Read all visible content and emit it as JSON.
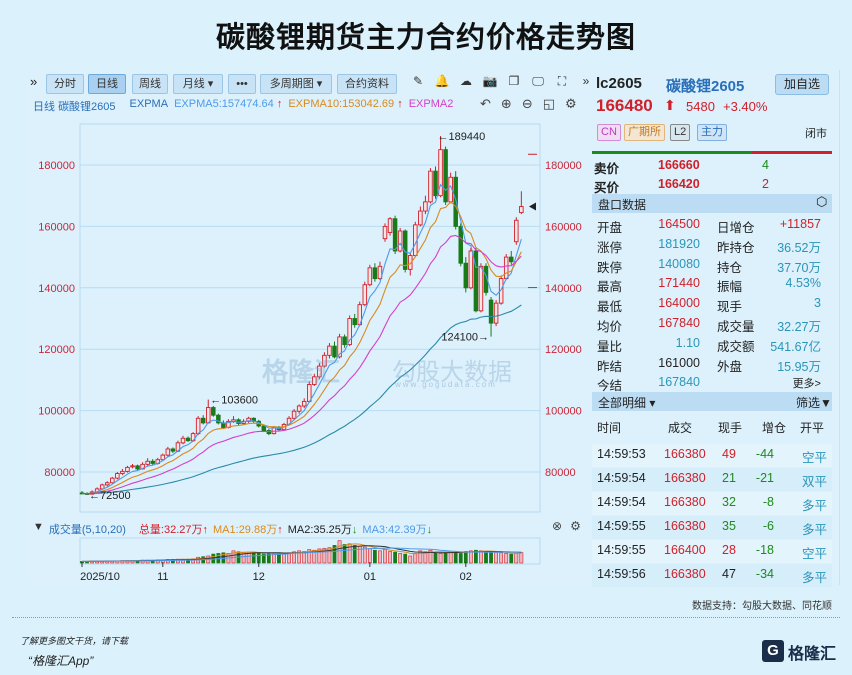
{
  "title": "碳酸锂期货主力合约价格走势图",
  "toolbar": {
    "expand": "»",
    "tabs": [
      "分时",
      "日线",
      "周线",
      "月线 ▾",
      "•••",
      "多周期图 ▾",
      "合约资料"
    ],
    "active": "日线",
    "icons": [
      "pencil-icon",
      "bell-icon",
      "cloud-icon",
      "camera-icon",
      "copy-icon",
      "monitor-icon",
      "fullscreen-icon",
      "expand-right-icon"
    ]
  },
  "legend": {
    "period": "日线",
    "name": "碳酸锂2605",
    "indicator": "EXPMA",
    "ema5": "EXPMA5:157474.64",
    "ema10": "EXPMA10:153042.69",
    "ema20": "EXPMA2",
    "up_arrow": "↑",
    "colors": {
      "ema5": "#4f9ae8",
      "ema10": "#d98a1f",
      "ema20": "#d63fc8",
      "ema60": "#2a8aa8"
    }
  },
  "volume": {
    "label": "成交量(5,10,20)",
    "total": "总量:32.27万",
    "ma1": "MA1:29.88万",
    "ma2": "MA2:35.25万",
    "ma3": "MA3:42.39万",
    "arrow_up": "↑",
    "arrow_down": "↓"
  },
  "watermark": {
    "brand": "格隆汇",
    "site": "勾股大数据",
    "url": "www.gogudata.com"
  },
  "quote": {
    "code": "lc2605",
    "name": "碳酸锂2605",
    "add_button": "加自选",
    "price": "166480",
    "change": "5480",
    "change_pct": "+3.40%",
    "tags": [
      "CN",
      "广期所",
      "L2",
      "主力"
    ],
    "status": "闭市",
    "ask_label": "卖价",
    "ask": "166660",
    "ask_vol": "4",
    "bid_label": "买价",
    "bid": "166420",
    "bid_vol": "2",
    "section": "盘口数据",
    "stats": [
      [
        "开盘",
        "164500",
        "日增仓",
        "+11857"
      ],
      [
        "涨停",
        "181920",
        "昨持仓",
        "36.52万"
      ],
      [
        "跌停",
        "140080",
        "持仓",
        "37.70万"
      ],
      [
        "最高",
        "171440",
        "振幅",
        "4.53%"
      ],
      [
        "最低",
        "164000",
        "现手",
        "3"
      ],
      [
        "均价",
        "167840",
        "成交量",
        "32.27万"
      ],
      [
        "量比",
        "1.10",
        "成交额",
        "541.67亿"
      ],
      [
        "昨结",
        "161000",
        "外盘",
        "15.95万"
      ],
      [
        "今结",
        "167840",
        "",
        "更多>"
      ]
    ],
    "detail_title": "全部明细 ▾",
    "filter": "筛选",
    "detail_headers": [
      "时间",
      "成交",
      "现手",
      "增仓",
      "开平"
    ],
    "details": [
      [
        "14:59:53",
        "166380",
        "49",
        "-44",
        "空平"
      ],
      [
        "14:59:54",
        "166380",
        "21",
        "-21",
        "双平"
      ],
      [
        "14:59:54",
        "166380",
        "32",
        "-8",
        "多平"
      ],
      [
        "14:59:55",
        "166380",
        "35",
        "-6",
        "多平"
      ],
      [
        "14:59:55",
        "166400",
        "28",
        "-18",
        "空平"
      ],
      [
        "14:59:56",
        "166380",
        "47",
        "-34",
        "多平"
      ]
    ]
  },
  "footer": {
    "source": "数据支持：勾股大数据、同花顺",
    "promo1": "了解更多图文干货，请下载",
    "promo2": "“格隆汇App”",
    "logo": "格隆汇"
  },
  "chart_data": {
    "type": "candlestick",
    "yticks": [
      80000,
      100000,
      120000,
      140000,
      160000,
      180000
    ],
    "ylim": [
      70000,
      193000
    ],
    "xticks": [
      {
        "label": "2025/10",
        "index": 0
      },
      {
        "label": "11",
        "index": 16
      },
      {
        "label": "12",
        "index": 35
      },
      {
        "label": "01",
        "index": 57
      },
      {
        "label": "02",
        "index": 76
      }
    ],
    "annotations": [
      {
        "text": "←189440",
        "index": 70,
        "price": 189440
      },
      {
        "text": "←103600",
        "index": 25,
        "price": 103600
      },
      {
        "text": "←72500",
        "index": 1,
        "price": 72500
      },
      {
        "text": "124100→",
        "index": 81,
        "price": 124100
      }
    ],
    "up_color": "#d0202a",
    "down_color": "#187a18",
    "ohlc": [
      [
        73200,
        73800,
        72800,
        73000
      ],
      [
        73000,
        73400,
        72500,
        72800
      ],
      [
        72800,
        74000,
        72600,
        73500
      ],
      [
        73500,
        75000,
        73200,
        74500
      ],
      [
        74500,
        76200,
        74200,
        75800
      ],
      [
        75800,
        77000,
        75300,
        76500
      ],
      [
        76500,
        78400,
        76200,
        78000
      ],
      [
        78000,
        80000,
        77600,
        79500
      ],
      [
        79500,
        81000,
        79000,
        80200
      ],
      [
        80200,
        82000,
        79800,
        81500
      ],
      [
        81800,
        82600,
        81200,
        82000
      ],
      [
        82000,
        82400,
        80600,
        81000
      ],
      [
        81000,
        83200,
        80800,
        82500
      ],
      [
        82500,
        84500,
        82000,
        83500
      ],
      [
        83500,
        84200,
        82200,
        82800
      ],
      [
        82800,
        84600,
        82400,
        84000
      ],
      [
        84000,
        86000,
        83600,
        85500
      ],
      [
        85500,
        88200,
        85000,
        87500
      ],
      [
        87500,
        88000,
        86200,
        86800
      ],
      [
        86800,
        90200,
        86500,
        89500
      ],
      [
        89500,
        91800,
        89000,
        91000
      ],
      [
        91000,
        91600,
        89800,
        90200
      ],
      [
        90200,
        93000,
        89800,
        92500
      ],
      [
        92500,
        98200,
        92000,
        97500
      ],
      [
        97500,
        98500,
        95500,
        96000
      ],
      [
        96000,
        103600,
        95800,
        101000
      ],
      [
        101000,
        101500,
        98000,
        98500
      ],
      [
        98500,
        99000,
        95500,
        96000
      ],
      [
        96000,
        96800,
        94000,
        94500
      ],
      [
        94500,
        97200,
        94200,
        96500
      ],
      [
        96500,
        98200,
        96000,
        97000
      ],
      [
        97000,
        97500,
        95200,
        95800
      ],
      [
        95800,
        97200,
        95400,
        96500
      ],
      [
        96500,
        98000,
        96000,
        97500
      ],
      [
        97500,
        97800,
        96000,
        96500
      ],
      [
        96500,
        97000,
        94500,
        95000
      ],
      [
        95000,
        95500,
        93000,
        93500
      ],
      [
        93500,
        94000,
        92000,
        92500
      ],
      [
        92500,
        95000,
        92200,
        94500
      ],
      [
        94500,
        95000,
        93400,
        93800
      ],
      [
        93800,
        96000,
        93500,
        95500
      ],
      [
        95500,
        98200,
        95200,
        97500
      ],
      [
        97500,
        100500,
        97000,
        99800
      ],
      [
        99800,
        102000,
        99000,
        101500
      ],
      [
        101500,
        104000,
        100800,
        103000
      ],
      [
        103000,
        109500,
        102500,
        108500
      ],
      [
        108500,
        112000,
        108000,
        111000
      ],
      [
        111000,
        115500,
        110200,
        114500
      ],
      [
        114500,
        119000,
        114000,
        118000
      ],
      [
        118000,
        122000,
        117000,
        121000
      ],
      [
        121000,
        122500,
        117000,
        117500
      ],
      [
        117500,
        125000,
        117000,
        124000
      ],
      [
        124000,
        124800,
        120500,
        121500
      ],
      [
        121500,
        131000,
        121000,
        130000
      ],
      [
        130000,
        131500,
        127000,
        128000
      ],
      [
        128000,
        135500,
        127500,
        134500
      ],
      [
        134500,
        142000,
        134000,
        141000
      ],
      [
        141000,
        147500,
        140500,
        146500
      ],
      [
        146500,
        148000,
        142000,
        143000
      ],
      [
        143000,
        148500,
        142500,
        147000
      ],
      [
        156000,
        161000,
        155000,
        160000
      ],
      [
        158000,
        163000,
        157000,
        162500
      ],
      [
        162500,
        163500,
        151000,
        152000
      ],
      [
        152000,
        159500,
        151500,
        158500
      ],
      [
        158500,
        159000,
        145000,
        146000
      ],
      [
        146000,
        151500,
        144000,
        150500
      ],
      [
        150500,
        161500,
        150000,
        160500
      ],
      [
        160500,
        166500,
        160000,
        165000
      ],
      [
        165000,
        170000,
        164000,
        168000
      ],
      [
        168000,
        179000,
        167500,
        178000
      ],
      [
        178000,
        179500,
        169000,
        170000
      ],
      [
        170000,
        189440,
        169500,
        185000
      ],
      [
        185000,
        186000,
        167000,
        168000
      ],
      [
        168000,
        177500,
        167500,
        176000
      ],
      [
        176000,
        178000,
        159000,
        160000
      ],
      [
        160000,
        161000,
        147000,
        148000
      ],
      [
        148000,
        150000,
        138500,
        140000
      ],
      [
        140000,
        153000,
        139500,
        152000
      ],
      [
        152000,
        153000,
        132000,
        132500
      ],
      [
        132500,
        148000,
        132000,
        147000
      ],
      [
        147000,
        148000,
        137500,
        138500
      ],
      [
        136000,
        137000,
        124100,
        128500
      ],
      [
        128500,
        136000,
        127500,
        135000
      ],
      [
        135000,
        144000,
        134500,
        143000
      ],
      [
        143000,
        151000,
        142500,
        150000
      ],
      [
        150000,
        152000,
        147500,
        148500
      ],
      [
        155000,
        163000,
        154000,
        162000
      ],
      [
        164500,
        171440,
        164000,
        166480
      ]
    ],
    "volume_wan": [
      5,
      5,
      6,
      6,
      6,
      7,
      7,
      7,
      8,
      8,
      8,
      8,
      9,
      9,
      9,
      10,
      10,
      11,
      11,
      12,
      12,
      12,
      13,
      18,
      20,
      22,
      28,
      30,
      32,
      30,
      38,
      35,
      33,
      34,
      32,
      30,
      28,
      30,
      30,
      32,
      30,
      32,
      35,
      38,
      36,
      42,
      40,
      44,
      46,
      48,
      55,
      70,
      58,
      60,
      55,
      52,
      50,
      45,
      40,
      38,
      42,
      36,
      34,
      30,
      28,
      22,
      30,
      38,
      35,
      40,
      32,
      30,
      35,
      33,
      34,
      30,
      36,
      38,
      40,
      38,
      36,
      34,
      33,
      32,
      30,
      28,
      30,
      32.27
    ]
  }
}
